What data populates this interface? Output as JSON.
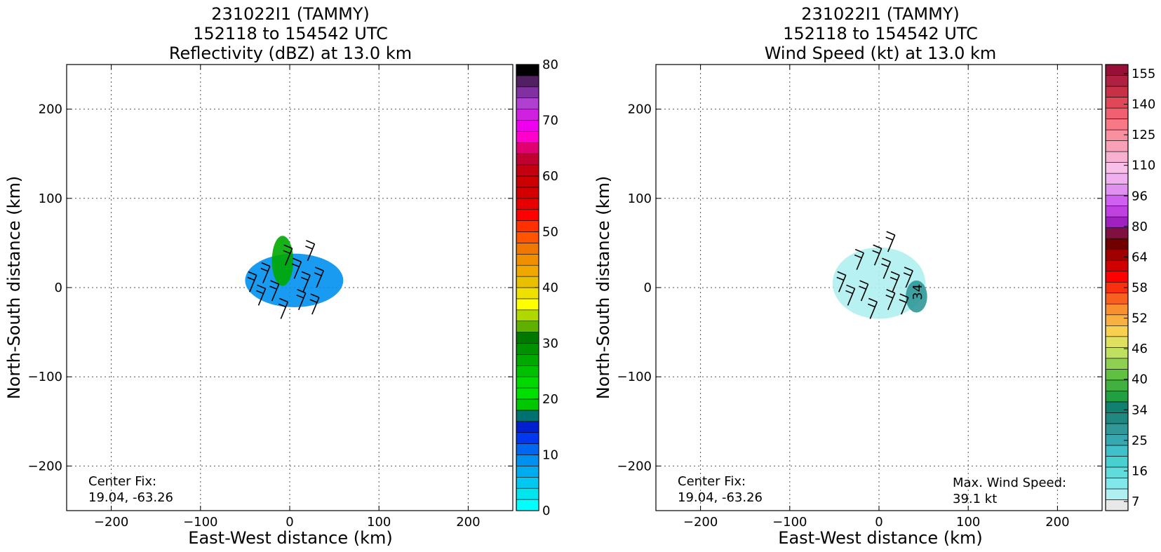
{
  "chart_data": [
    {
      "type": "heatmap",
      "title": [
        "231022I1 (TAMMY)",
        "152118 to 154542 UTC",
        "Reflectivity (dBZ) at 13.0 km"
      ],
      "xlabel": "East-West distance (km)",
      "ylabel": "North-South distance (km)",
      "xlim": [
        -250,
        250
      ],
      "ylim": [
        -250,
        250
      ],
      "x_ticks": [
        -200,
        -100,
        0,
        100,
        200
      ],
      "y_ticks": [
        200,
        100,
        0,
        -100,
        -200
      ],
      "grid": true,
      "annotations": [
        {
          "text": [
            "Center Fix:",
            "19.04, -63.26"
          ],
          "placement": "bottom-left"
        }
      ],
      "colorbar": {
        "vmin": 0,
        "vmax": 80,
        "tick_labels": [
          "80",
          "70",
          "60",
          "50",
          "40",
          "30",
          "20",
          "10",
          "0"
        ],
        "tick_values": [
          80,
          70,
          60,
          50,
          40,
          30,
          20,
          10,
          0
        ],
        "colors": [
          "#00ffff",
          "#00e5ee",
          "#00c8f0",
          "#00acf0",
          "#0090f0",
          "#0068f0",
          "#0038f0",
          "#0020d0",
          "#007070",
          "#00c800",
          "#00e000",
          "#00d800",
          "#00c000",
          "#00a800",
          "#009000",
          "#007800",
          "#60b000",
          "#b0d800",
          "#ffff00",
          "#f0e000",
          "#e8c000",
          "#f0a800",
          "#f09000",
          "#f07800",
          "#ff5500",
          "#ff3000",
          "#ff0000",
          "#e80000",
          "#d40000",
          "#cc0000",
          "#c40010",
          "#c00030",
          "#e00070",
          "#ff00cc",
          "#ee00ee",
          "#d020e0",
          "#b040d0",
          "#8030a0",
          "#502060",
          "#000000"
        ]
      },
      "data_blobs": [
        {
          "name": "echo-core",
          "value": 8,
          "cx": 5,
          "cy": 8,
          "rx": 55,
          "ry": 30
        },
        {
          "name": "convective-band",
          "value": 27,
          "cx": -8,
          "cy": 30,
          "rx": 12,
          "ry": 28
        }
      ],
      "wind_barbs": [
        {
          "x": -45,
          "y": -5
        },
        {
          "x": -30,
          "y": 5
        },
        {
          "x": -20,
          "y": -15
        },
        {
          "x": -5,
          "y": 25
        },
        {
          "x": 5,
          "y": 10
        },
        {
          "x": 15,
          "y": -5
        },
        {
          "x": 30,
          "y": 0
        },
        {
          "x": 10,
          "y": -25
        },
        {
          "x": -10,
          "y": -35
        },
        {
          "x": 25,
          "y": -30
        },
        {
          "x": -35,
          "y": -20
        },
        {
          "x": 20,
          "y": 30
        }
      ]
    },
    {
      "type": "heatmap",
      "title": [
        "231022I1 (TAMMY)",
        "152118 to 154542 UTC",
        "Wind Speed (kt) at 13.0 km"
      ],
      "xlabel": "East-West distance (km)",
      "ylabel": "North-South distance (km)",
      "xlim": [
        -250,
        250
      ],
      "ylim": [
        -250,
        250
      ],
      "x_ticks": [
        -200,
        -100,
        0,
        100,
        200
      ],
      "y_ticks": [
        200,
        100,
        0,
        -100,
        -200
      ],
      "grid": true,
      "annotations": [
        {
          "text": [
            "Center Fix:",
            "19.04, -63.26"
          ],
          "placement": "bottom-left"
        },
        {
          "text": [
            "Max. Wind Speed:",
            "39.1 kt"
          ],
          "placement": "bottom-right"
        }
      ],
      "contour_label": {
        "text": "34",
        "x": 48,
        "y": -5
      },
      "colorbar": {
        "vmin": 7,
        "vmax": 160,
        "tick_labels": [
          "155",
          "140",
          "125",
          "110",
          "96",
          "80",
          "64",
          "58",
          "52",
          "46",
          "40",
          "34",
          "25",
          "16",
          "7"
        ],
        "colors": [
          "#e8e8e8",
          "#b0f0f0",
          "#80e8e8",
          "#60dcdc",
          "#48d0d0",
          "#40c0c8",
          "#38a8b0",
          "#309898",
          "#208880",
          "#108070",
          "#20a040",
          "#40b040",
          "#60c040",
          "#90d050",
          "#c0e060",
          "#e0e060",
          "#f8d050",
          "#f8b040",
          "#f89030",
          "#f86020",
          "#f83010",
          "#ff0000",
          "#d00000",
          "#a00000",
          "#700000",
          "#801040",
          "#a020c0",
          "#c040e0",
          "#d060f0",
          "#e090f0",
          "#f0b0f0",
          "#f8c0e8",
          "#f8b0d0",
          "#f8a0b8",
          "#f890a0",
          "#f87888",
          "#f06070",
          "#e04858",
          "#c83048",
          "#b02040",
          "#981038"
        ]
      },
      "data_blobs": [
        {
          "name": "wind-field",
          "value": 14,
          "cx": 0,
          "cy": 5,
          "rx": 52,
          "ry": 40
        },
        {
          "name": "wind-max-ne",
          "value": 34,
          "cx": 42,
          "cy": -10,
          "rx": 12,
          "ry": 18
        }
      ],
      "wind_barbs": [
        {
          "x": -45,
          "y": -5
        },
        {
          "x": -25,
          "y": 20
        },
        {
          "x": -20,
          "y": -15
        },
        {
          "x": -5,
          "y": 25
        },
        {
          "x": 5,
          "y": 10
        },
        {
          "x": 15,
          "y": -5
        },
        {
          "x": 30,
          "y": 0
        },
        {
          "x": 10,
          "y": -25
        },
        {
          "x": -10,
          "y": -35
        },
        {
          "x": 25,
          "y": -30
        },
        {
          "x": -35,
          "y": -20
        },
        {
          "x": 10,
          "y": 40
        }
      ]
    }
  ]
}
